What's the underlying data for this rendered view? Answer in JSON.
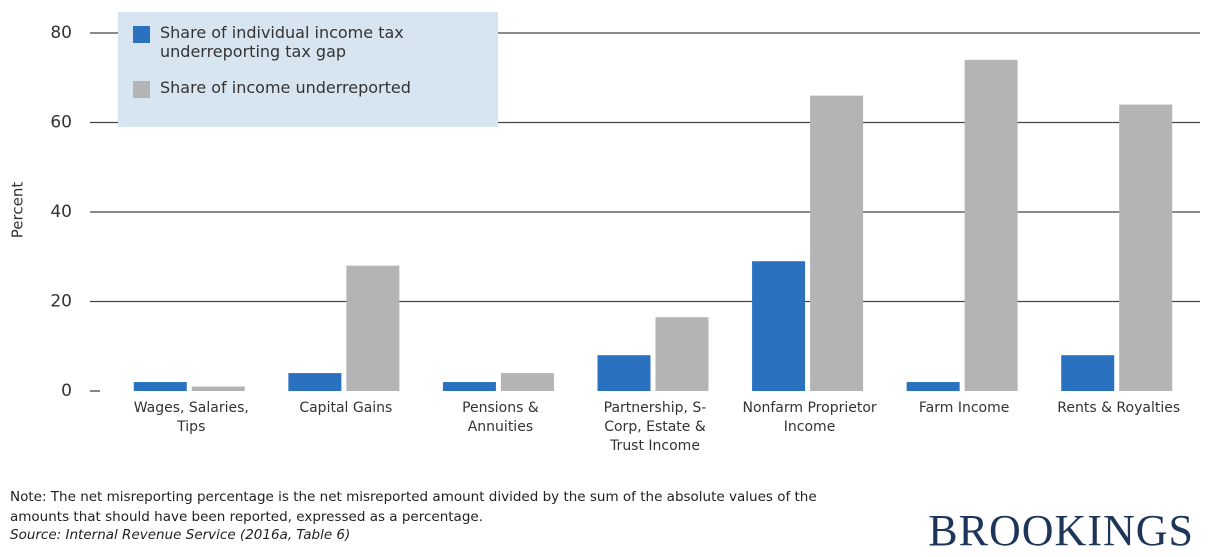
{
  "chart_data": {
    "type": "bar",
    "y_label": "Percent",
    "categories": [
      "Wages, Salaries, Tips",
      "Capital Gains",
      "Pensions & Annuities",
      "Partnership, S-Corp, Estate & Trust Income",
      "Nonfarm Proprietor Income",
      "Farm Income",
      "Rents & Royalties"
    ],
    "series": [
      {
        "name": "Share of individual income tax underreporting tax gap",
        "color": "#2a72bf",
        "values": [
          2,
          4,
          2,
          8,
          29,
          2,
          8
        ]
      },
      {
        "name": "Share of income underreported",
        "color": "#b4b4b4",
        "values": [
          1,
          28,
          4,
          16.5,
          66,
          74,
          64
        ]
      }
    ],
    "ylim": [
      0,
      80
    ],
    "yticks": [
      0,
      20,
      40,
      60,
      80
    ],
    "grid": true,
    "legend": "upper left",
    "note": "Note: The net misreporting percentage is the net misreported amount divided by the sum of the absolute values of the amounts that should have been reported, expressed as a percentage.",
    "source": "Source: Internal Revenue Service (2016a, Table 6)",
    "brand": "BROOKINGS"
  }
}
